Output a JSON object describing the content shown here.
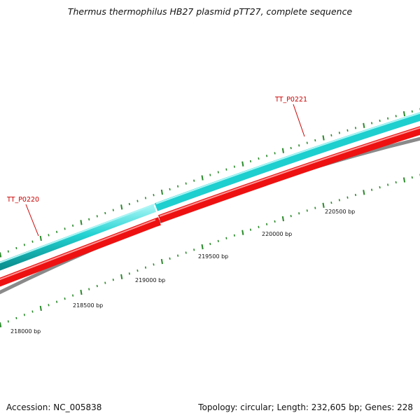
{
  "title": "Thermus thermophilus HB27 plasmid pTT27, complete sequence",
  "footer": {
    "accession": "Accession: NC_005838",
    "summary": "Topology: circular; Length: 232,605 bp; Genes: 228"
  },
  "colors": {
    "forward_gene": "#1ecfcf",
    "reverse_gene": "#ee1111",
    "backbone": "#888888",
    "ticks": "#2a8a2a",
    "gene_label": "#cc0000"
  },
  "gene_labels": [
    {
      "text": "TT_P0220"
    },
    {
      "text": "TT_P0221"
    }
  ],
  "scale_labels": [
    "218000 bp",
    "218500 bp",
    "219000 bp",
    "219500 bp",
    "220000 bp",
    "220500 bp"
  ]
}
